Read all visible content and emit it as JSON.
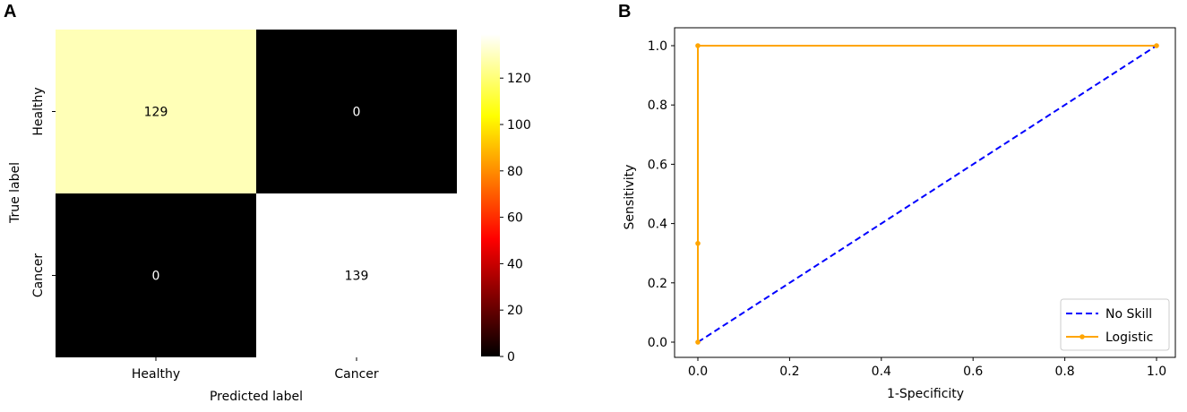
{
  "panels": {
    "a_label": "A",
    "b_label": "B"
  },
  "chart_data": [
    {
      "type": "heatmap",
      "row_labels": [
        "Healthy",
        "Cancer"
      ],
      "col_labels": [
        "Healthy",
        "Cancer"
      ],
      "values": [
        [
          129,
          0
        ],
        [
          0,
          139
        ]
      ],
      "xlabel": "Predicted label",
      "ylabel": "True label",
      "colormap": "hot",
      "colorbar": {
        "min": 0,
        "max": 139,
        "ticks": [
          0,
          20,
          40,
          60,
          80,
          100,
          120
        ]
      },
      "cell_text_colors": {
        "light": "#000000",
        "dark": "#ffffff"
      }
    },
    {
      "type": "line",
      "xlabel": "1-Specificity",
      "ylabel": "Sensitivity",
      "xlim": [
        0,
        1
      ],
      "ylim": [
        0,
        1
      ],
      "xticks": [
        "0.0",
        "0.2",
        "0.4",
        "0.6",
        "0.8",
        "1.0"
      ],
      "yticks": [
        "0.0",
        "0.2",
        "0.4",
        "0.6",
        "0.8",
        "1.0"
      ],
      "legend_position": "bottom-right",
      "series": [
        {
          "name": "No Skill",
          "x": [
            0,
            1
          ],
          "y": [
            0,
            1
          ],
          "color": "#0000ff",
          "style": "dashed",
          "marker": "none"
        },
        {
          "name": "Logistic",
          "x": [
            0,
            0,
            0,
            1
          ],
          "y": [
            0,
            0.333,
            1,
            1
          ],
          "color": "#ffa500",
          "style": "solid",
          "marker": "dot"
        }
      ]
    }
  ]
}
